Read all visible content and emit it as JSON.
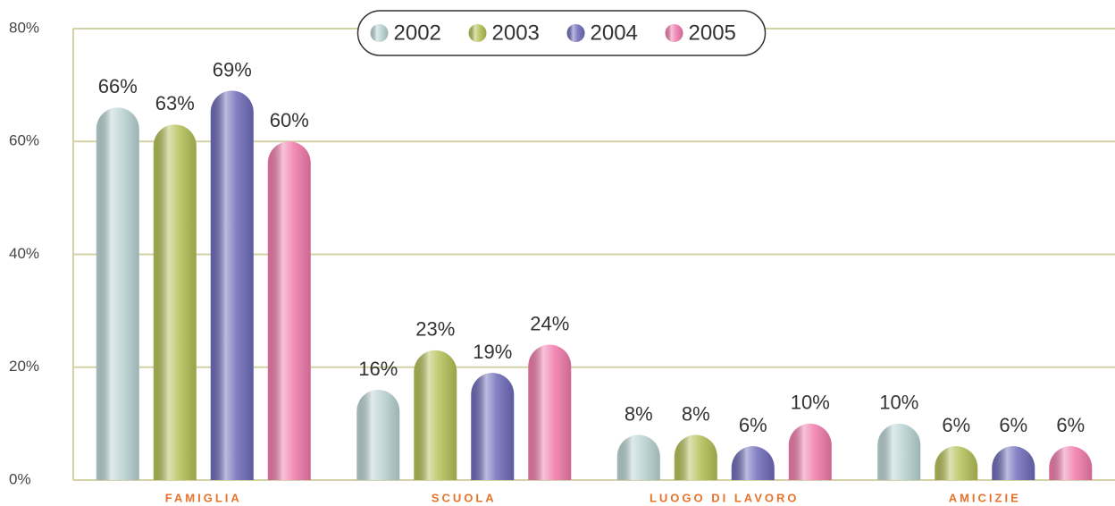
{
  "chart_data": {
    "type": "bar",
    "categories": [
      "FAMIGLIA",
      "SCUOLA",
      "LUOGO DI LAVORO",
      "AMICIZIE"
    ],
    "series": [
      {
        "name": "2002",
        "color": "#b9d2d2",
        "values": [
          66,
          16,
          8,
          10
        ],
        "value_labels": [
          "66%",
          "16%",
          "8%",
          "10%"
        ]
      },
      {
        "name": "2003",
        "color": "#b3bf55",
        "values": [
          63,
          23,
          8,
          6
        ],
        "value_labels": [
          "63%",
          "23%",
          "8%",
          "6%"
        ]
      },
      {
        "name": "2004",
        "color": "#6d6ab8",
        "values": [
          69,
          19,
          6,
          6
        ],
        "value_labels": [
          "69%",
          "19%",
          "6%",
          "6%"
        ]
      },
      {
        "name": "2005",
        "color": "#f07aab",
        "values": [
          60,
          24,
          10,
          6
        ],
        "value_labels": [
          "60%",
          "24%",
          "10%",
          "6%"
        ]
      }
    ],
    "ylim": [
      0,
      80
    ],
    "yticks": [
      {
        "value": 0,
        "label": "0%"
      },
      {
        "value": 20,
        "label": "20%"
      },
      {
        "value": 40,
        "label": "40%"
      },
      {
        "value": 60,
        "label": "60%"
      },
      {
        "value": 80,
        "label": "80%"
      }
    ],
    "grid": true,
    "legend": "top"
  }
}
